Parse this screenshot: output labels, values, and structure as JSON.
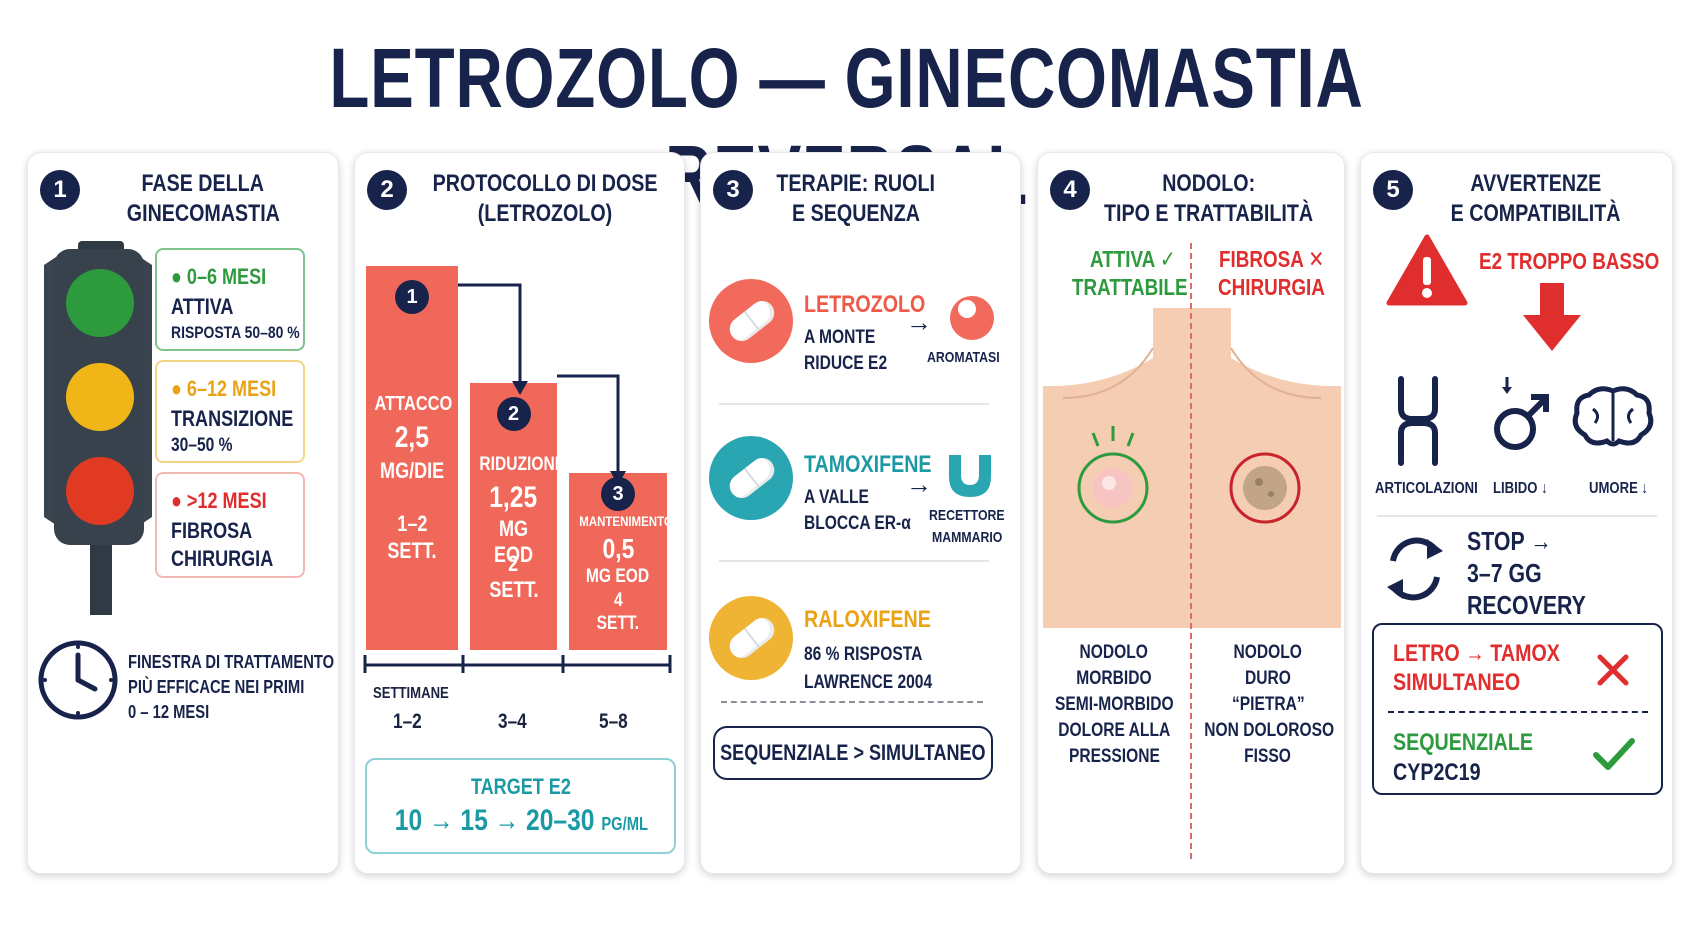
{
  "title": "LETROZOLO — GINECOMASTIA REVERSAL",
  "colors": {
    "navy": "#17234a",
    "green": "#2e9a3e",
    "yellow": "#e9a314",
    "red": "#e02d2d",
    "coral": "#f0685a",
    "teal": "#2aa6b2",
    "gold": "#efb434"
  },
  "panel1": {
    "number": "1",
    "title_line1": "FASE DELLA",
    "title_line2": "GINECOMASTIA",
    "phases": [
      {
        "range": "0–6 MESI",
        "label": "ATTIVA",
        "detail": "RISPOSTA 50–80 %"
      },
      {
        "range": "6–12 MESI",
        "label": "TRANSIZIONE",
        "detail": "30–50 %"
      },
      {
        "range": ">12 MESI",
        "label": "FIBROSA",
        "detail": "CHIRURGIA"
      }
    ],
    "clock_icon": "clock-icon",
    "window_line1": "FINESTRA DI TRATTAMENTO",
    "window_line2": "PIÙ EFFICACE NEI PRIMI",
    "window_line3": "0 – 12 MESI"
  },
  "panel2": {
    "number": "2",
    "title_line1": "PROTOCOLLO DI DOSE",
    "title_line2": "(LETROZOLO)",
    "steps": [
      {
        "n": "1",
        "name": "ATTACCO",
        "dose": "2,5",
        "unit": "MG/DIE",
        "duration1": "1–2",
        "duration2": "SETT.",
        "level": 1.0
      },
      {
        "n": "2",
        "name": "RIDUZIONE",
        "dose": "1,25",
        "unit": "MG EOD",
        "duration1": "2",
        "duration2": "SETT.",
        "level": 0.5
      },
      {
        "n": "3",
        "name": "MANTENIMENTO",
        "dose": "0,5",
        "unit": "MG EOD",
        "duration1": "4",
        "duration2": "SETT.",
        "level": 0.2
      }
    ],
    "axis_label": "SETTIMANE",
    "weeks": [
      "1–2",
      "3–4",
      "5–8"
    ],
    "target_label": "TARGET E2",
    "target_value": "10 → 15 → 20–30",
    "target_unit": "PG/ML"
  },
  "panel3": {
    "number": "3",
    "title_line1": "TERAPIE: RUOLI",
    "title_line2": "E SEQUENZA",
    "drugs": [
      {
        "name": "LETROZOLO",
        "line1": "A MONTE",
        "line2": "RIDUCE E2",
        "target": "AROMATASI",
        "target2": ""
      },
      {
        "name": "TAMOXIFENE",
        "line1": "A VALLE",
        "line2": "BLOCCA ER-α",
        "target": "RECETTORE",
        "target2": "MAMMARIO"
      },
      {
        "name": "RALOXIFENE",
        "line1": "86 % RISPOSTA",
        "line2": "LAWRENCE 2004",
        "target": "",
        "target2": ""
      }
    ],
    "sequence": "SEQUENZIALE > SIMULTANEO"
  },
  "panel4": {
    "number": "4",
    "title_line1": "NODOLO:",
    "title_line2": "TIPO E TRATTABILITÀ",
    "left_head1": "ATTIVA ✓",
    "left_head2": "TRATTABILE",
    "right_head1": "FIBROSA ✕",
    "right_head2": "CHIRURGIA",
    "left_lines": [
      "NODOLO",
      "MORBIDO",
      "SEMI-MORBIDO",
      "DOLORE ALLA",
      "PRESSIONE"
    ],
    "right_lines": [
      "NODOLO",
      "DURO",
      "“PIETRA”",
      "NON DOLOROSO",
      "FISSO"
    ]
  },
  "panel5": {
    "number": "5",
    "title_line1": "AVVERTENZE",
    "title_line2": "E COMPATIBILITÀ",
    "warning": "E2 TROPPO BASSO",
    "effects": [
      "ARTICOLAZIONI",
      "LIBIDO ↓",
      "UMORE ↓"
    ],
    "stop_line1": "STOP →",
    "stop_line2": "3–7 GG",
    "stop_line3": "RECOVERY",
    "bad_line1": "LETRO → TAMOX",
    "bad_line2": "SIMULTANEO",
    "good_line1": "SEQUENZIALE",
    "good_line2": "CYP2C19"
  }
}
